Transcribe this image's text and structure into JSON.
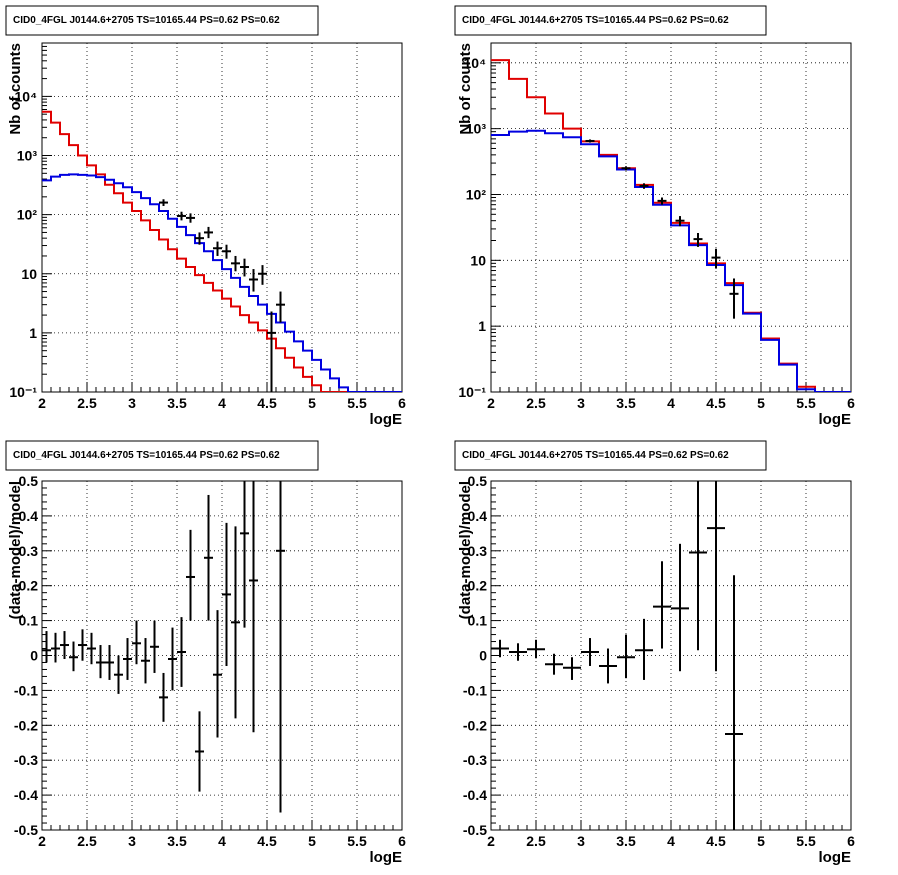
{
  "chart_data": [
    {
      "type": "line",
      "title": "CID0_4FGL J0144.6+2705 TS=10165.44 PS=0.62 PS=0.62",
      "xlabel": "logE",
      "ylabel": "Nb of counts",
      "xlim": [
        2,
        6
      ],
      "ylim": [
        0.1,
        80000
      ],
      "yscale": "log",
      "grid": true,
      "x_ticks": [
        "2",
        "2.5",
        "3",
        "3.5",
        "4",
        "4.5",
        "5",
        "5.5",
        "6"
      ],
      "y_ticks": [
        "10⁻¹",
        "1",
        "10",
        "10²",
        "10³",
        "10⁴"
      ],
      "bin_edges": [
        2.0,
        2.1,
        2.2,
        2.3,
        2.4,
        2.5,
        2.6,
        2.7,
        2.8,
        2.9,
        3.0,
        3.1,
        3.2,
        3.3,
        3.4,
        3.5,
        3.6,
        3.7,
        3.8,
        3.9,
        4.0,
        4.1,
        4.2,
        4.3,
        4.4,
        4.5,
        4.6,
        4.7,
        4.8,
        4.9,
        5.0,
        5.1,
        5.2,
        5.3,
        5.4,
        5.5,
        5.6,
        5.7,
        5.8,
        5.9,
        6.0
      ],
      "series": [
        {
          "color": "#e00000",
          "values": [
            5500,
            3600,
            2300,
            1500,
            1000,
            680,
            480,
            320,
            230,
            160,
            115,
            80,
            55,
            38,
            26,
            18,
            13,
            9.5,
            7,
            5.2,
            3.8,
            2.8,
            2.0,
            1.5,
            1.1,
            0.8,
            0.55,
            0.38,
            0.26,
            0.18,
            0.13,
            0.1,
            0.1,
            0.1,
            0.1,
            0.1,
            0.1,
            0.1,
            0.1,
            0.1
          ]
        },
        {
          "color": "#0000e0",
          "values": [
            380,
            440,
            470,
            480,
            470,
            460,
            430,
            390,
            340,
            290,
            240,
            190,
            150,
            115,
            85,
            62,
            45,
            33,
            24,
            17,
            12,
            8.5,
            6,
            4.2,
            3,
            2.1,
            1.5,
            1.05,
            0.72,
            0.5,
            0.35,
            0.24,
            0.17,
            0.12,
            0.1,
            0.1,
            0.1,
            0.1,
            0.1,
            0.1
          ]
        }
      ],
      "points": [
        {
          "x": 3.35,
          "y": 160,
          "lo": 140,
          "hi": 182
        },
        {
          "x": 3.55,
          "y": 95,
          "lo": 80,
          "hi": 112
        },
        {
          "x": 3.65,
          "y": 88,
          "lo": 73,
          "hi": 105
        },
        {
          "x": 3.75,
          "y": 40,
          "lo": 31,
          "hi": 50
        },
        {
          "x": 3.85,
          "y": 50,
          "lo": 40,
          "hi": 62
        },
        {
          "x": 3.95,
          "y": 27,
          "lo": 20,
          "hi": 35
        },
        {
          "x": 4.05,
          "y": 24,
          "lo": 18,
          "hi": 31
        },
        {
          "x": 4.15,
          "y": 15,
          "lo": 11,
          "hi": 20
        },
        {
          "x": 4.25,
          "y": 13,
          "lo": 9,
          "hi": 18
        },
        {
          "x": 4.35,
          "y": 8,
          "lo": 5,
          "hi": 12
        },
        {
          "x": 4.45,
          "y": 10,
          "lo": 6.5,
          "hi": 14
        },
        {
          "x": 4.55,
          "y": 1.0,
          "lo": 0.1,
          "hi": 2.3
        },
        {
          "x": 4.65,
          "y": 3.0,
          "lo": 1.5,
          "hi": 5
        }
      ]
    },
    {
      "type": "line",
      "title": "CID0_4FGL J0144.6+2705 TS=10165.44 PS=0.62 PS=0.62",
      "xlabel": "logE",
      "ylabel": "Nb of counts",
      "xlim": [
        2,
        6
      ],
      "ylim": [
        0.1,
        20000
      ],
      "yscale": "log",
      "grid": true,
      "x_ticks": [
        "2",
        "2.5",
        "3",
        "3.5",
        "4",
        "4.5",
        "5",
        "5.5",
        "6"
      ],
      "y_ticks": [
        "10⁻¹",
        "1",
        "10",
        "10²",
        "10³",
        "10⁴"
      ],
      "bin_edges": [
        2.0,
        2.2,
        2.4,
        2.6,
        2.8,
        3.0,
        3.2,
        3.4,
        3.6,
        3.8,
        4.0,
        4.2,
        4.4,
        4.6,
        4.8,
        5.0,
        5.2,
        5.4,
        5.6,
        5.8,
        6.0
      ],
      "series": [
        {
          "color": "#e00000",
          "values": [
            11000,
            5700,
            3000,
            1700,
            1000,
            640,
            400,
            250,
            140,
            75,
            37,
            18,
            9,
            4.5,
            1.6,
            0.65,
            0.27,
            0.12,
            0.1,
            0.1
          ]
        },
        {
          "color": "#0000e0",
          "values": [
            800,
            900,
            930,
            850,
            740,
            580,
            380,
            240,
            130,
            70,
            34,
            17,
            8.5,
            4.2,
            1.55,
            0.62,
            0.26,
            0.11,
            0.1,
            0.1
          ]
        }
      ],
      "points": [
        {
          "x": 3.1,
          "y": 650,
          "lo": 615,
          "hi": 685
        },
        {
          "x": 3.5,
          "y": 250,
          "lo": 232,
          "hi": 268
        },
        {
          "x": 3.7,
          "y": 135,
          "lo": 122,
          "hi": 148
        },
        {
          "x": 3.9,
          "y": 80,
          "lo": 70,
          "hi": 90
        },
        {
          "x": 4.1,
          "y": 40,
          "lo": 33,
          "hi": 47
        },
        {
          "x": 4.3,
          "y": 21,
          "lo": 16,
          "hi": 26
        },
        {
          "x": 4.5,
          "y": 11,
          "lo": 7.5,
          "hi": 15
        },
        {
          "x": 4.7,
          "y": 3.1,
          "lo": 1.3,
          "hi": 5.3
        }
      ]
    },
    {
      "type": "scatter",
      "title": "CID0_4FGL J0144.6+2705 TS=10165.44 PS=0.62 PS=0.62",
      "xlabel": "logE",
      "ylabel": "(data-model)/model",
      "xlim": [
        2,
        6
      ],
      "ylim": [
        -0.5,
        0.5
      ],
      "grid": true,
      "x_ticks": [
        "2",
        "2.5",
        "3",
        "3.5",
        "4",
        "4.5",
        "5",
        "5.5",
        "6"
      ],
      "y_ticks": [
        "-0.5",
        "-0.4",
        "-0.3",
        "-0.2",
        "-0.1",
        "0",
        "0.1",
        "0.2",
        "0.3",
        "0.4",
        "0.5"
      ],
      "xerr": 0.05,
      "points": [
        {
          "x": 2.05,
          "y": 0.015,
          "lo": -0.02,
          "hi": 0.07
        },
        {
          "x": 2.15,
          "y": 0.02,
          "lo": -0.02,
          "hi": 0.065
        },
        {
          "x": 2.25,
          "y": 0.03,
          "lo": -0.01,
          "hi": 0.07
        },
        {
          "x": 2.35,
          "y": -0.005,
          "lo": -0.045,
          "hi": 0.04
        },
        {
          "x": 2.45,
          "y": 0.03,
          "lo": -0.015,
          "hi": 0.075
        },
        {
          "x": 2.55,
          "y": 0.02,
          "lo": -0.025,
          "hi": 0.065
        },
        {
          "x": 2.65,
          "y": -0.02,
          "lo": -0.065,
          "hi": 0.03
        },
        {
          "x": 2.75,
          "y": -0.02,
          "lo": -0.07,
          "hi": 0.03
        },
        {
          "x": 2.85,
          "y": -0.055,
          "lo": -0.11,
          "hi": 0.0
        },
        {
          "x": 2.95,
          "y": -0.01,
          "lo": -0.07,
          "hi": 0.05
        },
        {
          "x": 3.05,
          "y": 0.035,
          "lo": -0.025,
          "hi": 0.1
        },
        {
          "x": 3.15,
          "y": -0.015,
          "lo": -0.08,
          "hi": 0.05
        },
        {
          "x": 3.25,
          "y": 0.025,
          "lo": -0.05,
          "hi": 0.1
        },
        {
          "x": 3.35,
          "y": -0.12,
          "lo": -0.19,
          "hi": -0.05
        },
        {
          "x": 3.45,
          "y": -0.01,
          "lo": -0.1,
          "hi": 0.08
        },
        {
          "x": 3.55,
          "y": 0.01,
          "lo": -0.09,
          "hi": 0.11
        },
        {
          "x": 3.65,
          "y": 0.225,
          "lo": 0.1,
          "hi": 0.36
        },
        {
          "x": 3.75,
          "y": -0.275,
          "lo": -0.39,
          "hi": -0.16
        },
        {
          "x": 3.85,
          "y": 0.28,
          "lo": 0.1,
          "hi": 0.46
        },
        {
          "x": 3.95,
          "y": -0.055,
          "lo": -0.235,
          "hi": 0.13
        },
        {
          "x": 4.05,
          "y": 0.175,
          "lo": -0.03,
          "hi": 0.38
        },
        {
          "x": 4.15,
          "y": 0.095,
          "lo": -0.18,
          "hi": 0.37
        },
        {
          "x": 4.25,
          "y": 0.35,
          "lo": 0.08,
          "hi": 0.62
        },
        {
          "x": 4.35,
          "y": 0.215,
          "lo": -0.22,
          "hi": 0.65
        },
        {
          "x": 4.65,
          "y": 0.3,
          "lo": -0.45,
          "hi": 1.05
        }
      ]
    },
    {
      "type": "scatter",
      "title": "CID0_4FGL J0144.6+2705 TS=10165.44 PS=0.62 PS=0.62",
      "xlabel": "logE",
      "ylabel": "(data-model)/model",
      "xlim": [
        2,
        6
      ],
      "ylim": [
        -0.5,
        0.5
      ],
      "grid": true,
      "x_ticks": [
        "2",
        "2.5",
        "3",
        "3.5",
        "4",
        "4.5",
        "5",
        "5.5",
        "6"
      ],
      "y_ticks": [
        "-0.5",
        "-0.4",
        "-0.3",
        "-0.2",
        "-0.1",
        "0",
        "0.1",
        "0.2",
        "0.3",
        "0.4",
        "0.5"
      ],
      "xerr": 0.1,
      "points": [
        {
          "x": 2.1,
          "y": 0.02,
          "lo": -0.005,
          "hi": 0.045
        },
        {
          "x": 2.3,
          "y": 0.01,
          "lo": -0.015,
          "hi": 0.035
        },
        {
          "x": 2.5,
          "y": 0.018,
          "lo": -0.008,
          "hi": 0.045
        },
        {
          "x": 2.7,
          "y": -0.025,
          "lo": -0.055,
          "hi": 0.005
        },
        {
          "x": 2.9,
          "y": -0.035,
          "lo": -0.07,
          "hi": -0.005
        },
        {
          "x": 3.1,
          "y": 0.01,
          "lo": -0.03,
          "hi": 0.05
        },
        {
          "x": 3.3,
          "y": -0.03,
          "lo": -0.08,
          "hi": 0.02
        },
        {
          "x": 3.5,
          "y": -0.005,
          "lo": -0.065,
          "hi": 0.06
        },
        {
          "x": 3.7,
          "y": 0.015,
          "lo": -0.07,
          "hi": 0.105
        },
        {
          "x": 3.9,
          "y": 0.14,
          "lo": 0.02,
          "hi": 0.27
        },
        {
          "x": 4.1,
          "y": 0.135,
          "lo": -0.045,
          "hi": 0.32
        },
        {
          "x": 4.3,
          "y": 0.295,
          "lo": 0.015,
          "hi": 0.58
        },
        {
          "x": 4.5,
          "y": 0.365,
          "lo": -0.045,
          "hi": 0.78
        },
        {
          "x": 4.7,
          "y": -0.225,
          "lo": -0.7,
          "hi": 0.23
        }
      ]
    }
  ]
}
